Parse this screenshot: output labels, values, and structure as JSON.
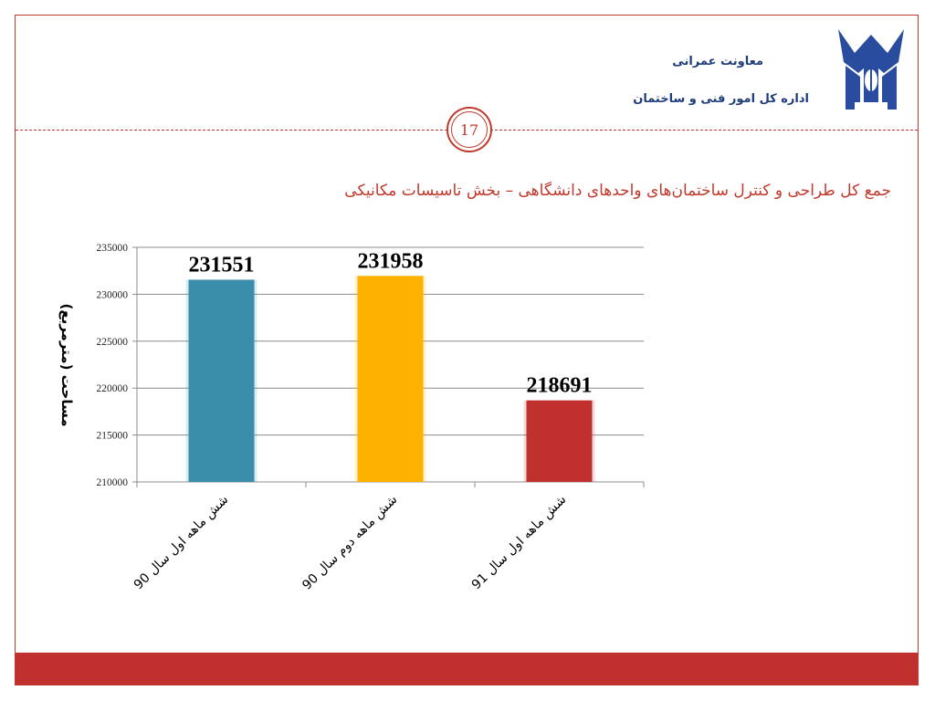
{
  "header": {
    "department": "معاونت عمرانی",
    "office": "اداره کل امور فنی و ساختمان",
    "page_number": "17",
    "logo_caption": "دانشگاه آزاد اسلامی"
  },
  "colors": {
    "accent": "#c0392b",
    "header_text": "#1f3d7a",
    "logo_blue": "#2a4c9e",
    "footer": "#c0302f"
  },
  "chart_data": {
    "type": "bar",
    "title": "جمع کل طراحی و کنترل ساختمان‌های واحدهای دانشگاهی – بخش تاسیسات مکانیکی",
    "ylabel": "مساحت (مترمربع)",
    "xlabel": "",
    "categories": [
      "شش ماهه اول سال 90",
      "شش ماهه دوم سال 90",
      "شش ماهه اول سال 91"
    ],
    "values": [
      231551,
      231958,
      218691
    ],
    "data_labels": [
      "231551",
      "231958",
      "218691"
    ],
    "bar_colors": [
      "#3a8ea9",
      "#ffb100",
      "#c0302f"
    ],
    "ylim": [
      210000,
      235000
    ],
    "yticks": [
      "210000",
      "215000",
      "220000",
      "225000",
      "230000",
      "235000"
    ],
    "grid": true,
    "legend": false
  }
}
